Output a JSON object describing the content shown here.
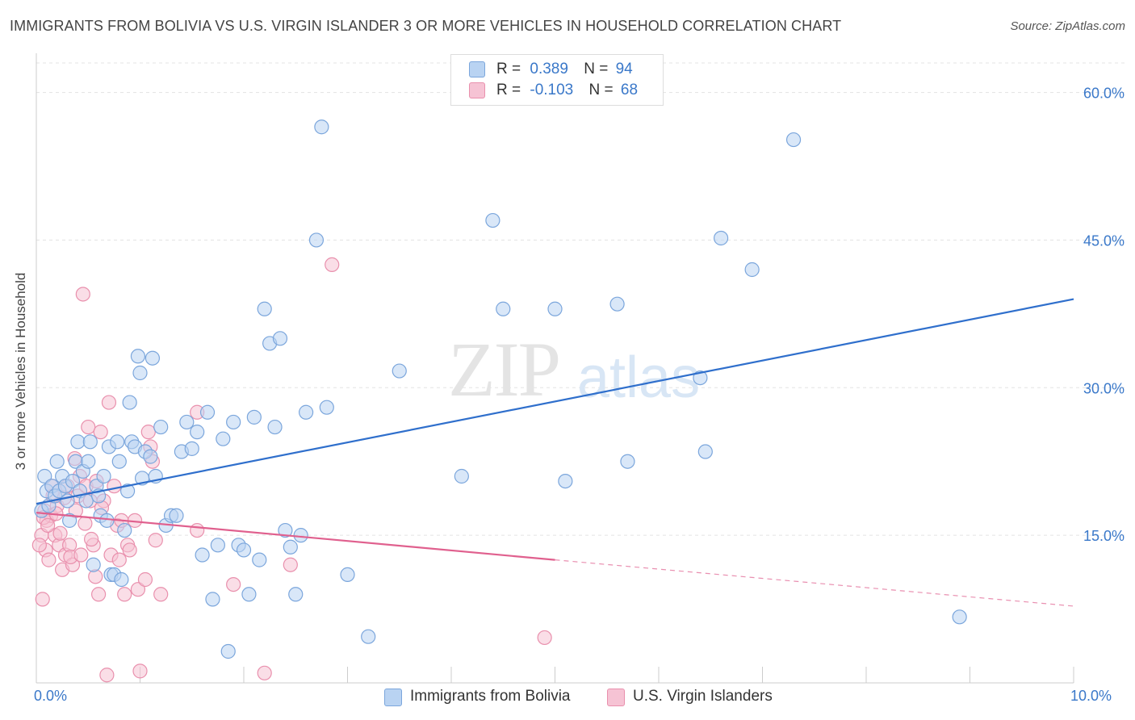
{
  "title": "IMMIGRANTS FROM BOLIVIA VS U.S. VIRGIN ISLANDER 3 OR MORE VEHICLES IN HOUSEHOLD CORRELATION CHART",
  "source": "Source: ZipAtlas.com",
  "watermark": {
    "zip": "ZIP",
    "atlas": "atlas"
  },
  "legend": {
    "rows": [
      {
        "r_label": "R = ",
        "r_value": "0.389",
        "n_label": "N = ",
        "n_value": "94"
      },
      {
        "r_label": "R = ",
        "r_value": "-0.103",
        "n_label": "N = ",
        "n_value": "68"
      }
    ]
  },
  "bottom_legend": [
    "Immigrants from Bolivia",
    "U.S. Virgin Islanders"
  ],
  "colors": {
    "blue_fill": "#b9d3f2",
    "blue_stroke": "#7ba6dc",
    "blue_line": "#2f6fcc",
    "pink_fill": "#f6c3d4",
    "pink_stroke": "#e990ad",
    "pink_line": "#e0608e",
    "tick_text": "#3a78c9",
    "grid": "#e3e3e3"
  },
  "chart_data": {
    "type": "scatter",
    "title": "IMMIGRANTS FROM BOLIVIA VS U.S. VIRGIN ISLANDER 3 OR MORE VEHICLES IN HOUSEHOLD CORRELATION CHART",
    "xlabel": "",
    "ylabel": "3 or more Vehicles in Household",
    "xlim": [
      0,
      10
    ],
    "ylim": [
      0,
      63
    ],
    "x_tick_labels": [
      "0.0%",
      "10.0%"
    ],
    "y_ticks": [
      15,
      30,
      45,
      60
    ],
    "y_tick_labels": [
      "15.0%",
      "30.0%",
      "45.0%",
      "60.0%"
    ],
    "series": [
      {
        "name": "Immigrants from Bolivia",
        "color": "blue",
        "trend": {
          "x0": 0,
          "y0": 18.2,
          "x1": 10,
          "y1": 39.0
        },
        "points": [
          [
            0.05,
            17.5
          ],
          [
            0.08,
            21.0
          ],
          [
            0.1,
            19.5
          ],
          [
            0.12,
            18.0
          ],
          [
            0.15,
            20.0
          ],
          [
            0.18,
            19.0
          ],
          [
            0.2,
            22.5
          ],
          [
            0.22,
            19.5
          ],
          [
            0.25,
            21.0
          ],
          [
            0.28,
            20.0
          ],
          [
            0.3,
            18.5
          ],
          [
            0.32,
            16.5
          ],
          [
            0.35,
            20.5
          ],
          [
            0.38,
            22.5
          ],
          [
            0.4,
            24.5
          ],
          [
            0.42,
            19.5
          ],
          [
            0.45,
            21.5
          ],
          [
            0.48,
            18.5
          ],
          [
            0.5,
            22.5
          ],
          [
            0.52,
            24.5
          ],
          [
            0.55,
            12.0
          ],
          [
            0.58,
            20.0
          ],
          [
            0.6,
            19.0
          ],
          [
            0.62,
            17.0
          ],
          [
            0.65,
            21.0
          ],
          [
            0.68,
            16.5
          ],
          [
            0.7,
            24.0
          ],
          [
            0.72,
            11.0
          ],
          [
            0.75,
            11.0
          ],
          [
            0.78,
            24.5
          ],
          [
            0.8,
            22.5
          ],
          [
            0.82,
            10.5
          ],
          [
            0.85,
            15.5
          ],
          [
            0.88,
            19.5
          ],
          [
            0.9,
            28.5
          ],
          [
            0.92,
            24.5
          ],
          [
            0.95,
            24.0
          ],
          [
            0.98,
            33.2
          ],
          [
            1.0,
            31.5
          ],
          [
            1.02,
            20.8
          ],
          [
            1.05,
            23.5
          ],
          [
            1.1,
            23.0
          ],
          [
            1.12,
            33.0
          ],
          [
            1.15,
            21.0
          ],
          [
            1.2,
            26.0
          ],
          [
            1.25,
            16.0
          ],
          [
            1.3,
            17.0
          ],
          [
            1.35,
            17.0
          ],
          [
            1.4,
            23.5
          ],
          [
            1.45,
            26.5
          ],
          [
            1.5,
            23.8
          ],
          [
            1.55,
            25.5
          ],
          [
            1.6,
            13.0
          ],
          [
            1.65,
            27.5
          ],
          [
            1.7,
            8.5
          ],
          [
            1.75,
            14.0
          ],
          [
            1.8,
            24.8
          ],
          [
            1.85,
            3.2
          ],
          [
            1.9,
            26.5
          ],
          [
            1.95,
            14.0
          ],
          [
            2.0,
            13.5
          ],
          [
            2.05,
            9.0
          ],
          [
            2.1,
            27.0
          ],
          [
            2.15,
            12.5
          ],
          [
            2.2,
            38.0
          ],
          [
            2.25,
            34.5
          ],
          [
            2.3,
            26.0
          ],
          [
            2.35,
            35.0
          ],
          [
            2.4,
            15.5
          ],
          [
            2.45,
            13.8
          ],
          [
            2.5,
            9.0
          ],
          [
            2.55,
            15.0
          ],
          [
            2.6,
            27.5
          ],
          [
            2.7,
            45.0
          ],
          [
            2.75,
            56.5
          ],
          [
            2.8,
            28.0
          ],
          [
            3.0,
            11.0
          ],
          [
            3.2,
            4.7
          ],
          [
            3.5,
            31.7
          ],
          [
            4.1,
            21.0
          ],
          [
            4.4,
            47.0
          ],
          [
            4.5,
            38.0
          ],
          [
            5.0,
            38.0
          ],
          [
            5.1,
            20.5
          ],
          [
            5.6,
            38.5
          ],
          [
            5.7,
            22.5
          ],
          [
            6.4,
            31.0
          ],
          [
            6.45,
            23.5
          ],
          [
            6.6,
            45.2
          ],
          [
            6.9,
            42.0
          ],
          [
            7.3,
            55.2
          ],
          [
            8.9,
            6.7
          ]
        ]
      },
      {
        "name": "U.S. Virgin Islanders",
        "color": "pink",
        "trend": {
          "x0": 0,
          "y0": 17.3,
          "x1": 5,
          "y1": 12.5,
          "dash_x1": 10,
          "dash_y1": 7.8
        },
        "points": [
          [
            0.05,
            15.0
          ],
          [
            0.06,
            8.5
          ],
          [
            0.08,
            17.5
          ],
          [
            0.09,
            13.5
          ],
          [
            0.1,
            16.5
          ],
          [
            0.12,
            12.5
          ],
          [
            0.14,
            17.0
          ],
          [
            0.15,
            20.0
          ],
          [
            0.18,
            15.0
          ],
          [
            0.2,
            18.0
          ],
          [
            0.22,
            14.0
          ],
          [
            0.25,
            11.5
          ],
          [
            0.28,
            13.0
          ],
          [
            0.3,
            20.0
          ],
          [
            0.32,
            14.0
          ],
          [
            0.35,
            12.0
          ],
          [
            0.38,
            17.5
          ],
          [
            0.4,
            19.0
          ],
          [
            0.42,
            21.0
          ],
          [
            0.45,
            39.5
          ],
          [
            0.48,
            20.0
          ],
          [
            0.5,
            26.0
          ],
          [
            0.52,
            18.5
          ],
          [
            0.55,
            14.0
          ],
          [
            0.58,
            20.5
          ],
          [
            0.6,
            9.0
          ],
          [
            0.62,
            25.5
          ],
          [
            0.65,
            18.5
          ],
          [
            0.68,
            0.8
          ],
          [
            0.7,
            28.5
          ],
          [
            0.72,
            13.0
          ],
          [
            0.75,
            20.0
          ],
          [
            0.78,
            16.0
          ],
          [
            0.8,
            12.5
          ],
          [
            0.82,
            16.5
          ],
          [
            0.85,
            9.0
          ],
          [
            0.88,
            14.0
          ],
          [
            0.9,
            13.5
          ],
          [
            0.95,
            16.5
          ],
          [
            0.98,
            9.5
          ],
          [
            1.0,
            1.2
          ],
          [
            1.05,
            10.5
          ],
          [
            1.08,
            25.5
          ],
          [
            1.1,
            24.0
          ],
          [
            1.12,
            22.5
          ],
          [
            1.15,
            14.5
          ],
          [
            1.2,
            9.0
          ],
          [
            1.55,
            15.5
          ],
          [
            1.55,
            27.5
          ],
          [
            1.9,
            10.0
          ],
          [
            2.2,
            1.0
          ],
          [
            2.45,
            12.0
          ],
          [
            2.85,
            42.5
          ],
          [
            4.9,
            4.6
          ],
          [
            0.03,
            14.0
          ],
          [
            0.07,
            16.8
          ],
          [
            0.11,
            16.0
          ],
          [
            0.16,
            19.0
          ],
          [
            0.19,
            17.2
          ],
          [
            0.23,
            15.2
          ],
          [
            0.27,
            18.8
          ],
          [
            0.33,
            12.8
          ],
          [
            0.37,
            22.8
          ],
          [
            0.43,
            13.0
          ],
          [
            0.47,
            16.2
          ],
          [
            0.53,
            14.6
          ],
          [
            0.57,
            10.8
          ],
          [
            0.63,
            17.8
          ]
        ]
      }
    ]
  }
}
